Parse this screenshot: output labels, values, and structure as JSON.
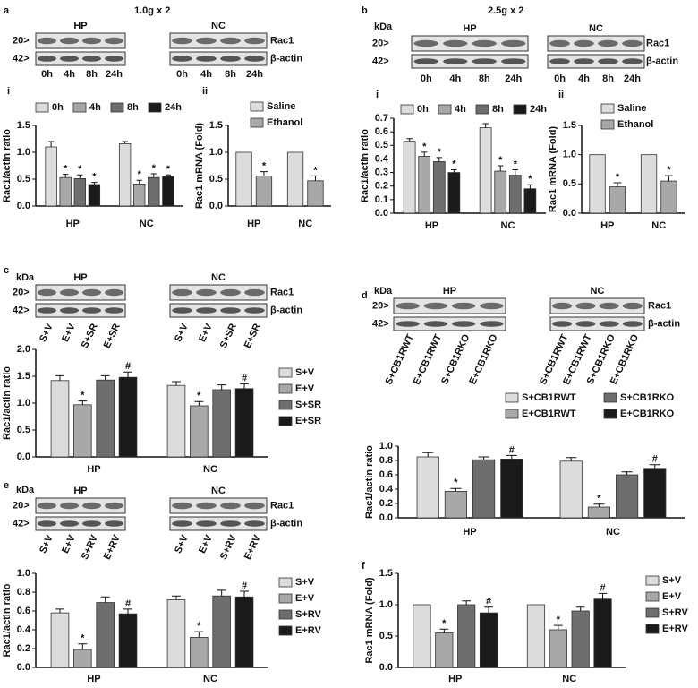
{
  "panel_letters": [
    "a",
    "b",
    "c",
    "d",
    "e",
    "f"
  ],
  "headers": [
    "1.0g x 2",
    "2.5g x 2"
  ],
  "blots": [
    {
      "groups": [
        "HP",
        "NC"
      ],
      "markers": [
        "20>",
        "42>"
      ],
      "proteins": [
        "Rac1",
        "β-actin"
      ],
      "lanes": [
        "0h",
        "4h",
        "8h",
        "24h"
      ]
    },
    {
      "kda": "kDa",
      "groups": [
        "HP",
        "NC"
      ],
      "markers": [
        "20>",
        "42>"
      ],
      "proteins": [
        "Rac1",
        "β-actin"
      ],
      "lanes": [
        "0h",
        "4h",
        "8h",
        "24h"
      ]
    },
    {
      "kda": "kDa",
      "groups": [
        "HP",
        "NC"
      ],
      "markers": [
        "20>",
        "42>"
      ],
      "proteins": [
        "Rac1",
        "β-actin"
      ],
      "lanes": [
        "S+V",
        "E+V",
        "S+SR",
        "E+SR"
      ]
    },
    {
      "kda": "kDa",
      "groups": [
        "HP",
        "NC"
      ],
      "markers": [
        "20>",
        "42>"
      ],
      "proteins": [
        "Rac1",
        "β-actin"
      ],
      "lanes": [
        "S+CB1RWT",
        "E+CB1RWT",
        "S+CB1RKO",
        "E+CB1RKO"
      ]
    },
    {
      "kda": "kDa",
      "groups": [
        "HP",
        "NC"
      ],
      "markers": [
        "20>",
        "42>"
      ],
      "proteins": [
        "Rac1",
        "β-actin"
      ],
      "lanes": [
        "S+V",
        "E+V",
        "S+RV",
        "E+RV"
      ]
    }
  ],
  "chart_data": [
    {
      "type": "bar",
      "label": "i",
      "y_label": "Rac1/actin ratio",
      "legend": "top",
      "categories": [
        "HP",
        "NC"
      ],
      "ylim": [
        0,
        1.5
      ],
      "yticks": [
        {
          "value": 0,
          "label": "0.0"
        },
        {
          "value": 0.5,
          "label": "0.5"
        },
        {
          "value": 1,
          "label": "1.0"
        },
        {
          "value": 1.5,
          "label": "1.5"
        }
      ],
      "series": [
        {
          "name": "0h",
          "color": "#dcdcdc",
          "values": [
            1.1,
            1.16
          ],
          "errors": [
            0.1,
            0.04
          ]
        },
        {
          "name": "4h",
          "color": "#a8a8a8",
          "values": [
            0.53,
            0.41
          ],
          "errors": [
            0.06,
            0.07
          ],
          "sig": [
            "*",
            "*"
          ]
        },
        {
          "name": "8h",
          "color": "#6e6e6e",
          "values": [
            0.51,
            0.53
          ],
          "errors": [
            0.07,
            0.07
          ],
          "sig": [
            "*",
            "*"
          ]
        },
        {
          "name": "24h",
          "color": "#1a1a1a",
          "values": [
            0.4,
            0.55
          ],
          "errors": [
            0.04,
            0.03
          ],
          "sig": [
            "*",
            "*"
          ]
        }
      ]
    },
    {
      "type": "bar",
      "label": "ii",
      "y_label": "Rac1 mRNA (Fold)",
      "legend": "upper right",
      "categories": [
        "HP",
        "NC"
      ],
      "ylim": [
        0,
        1.5
      ],
      "yticks": [
        {
          "value": 0,
          "label": "0.0"
        },
        {
          "value": 0.5,
          "label": "0.5"
        },
        {
          "value": 1,
          "label": "1.0"
        },
        {
          "value": 1.5,
          "label": "1.5"
        }
      ],
      "series": [
        {
          "name": "Saline",
          "color": "#dcdcdc",
          "values": [
            1,
            1
          ]
        },
        {
          "name": "Ethanol",
          "color": "#a8a8a8",
          "values": [
            0.56,
            0.47
          ],
          "errors": [
            0.08,
            0.09
          ],
          "sig": [
            "*",
            "*"
          ]
        }
      ]
    },
    {
      "type": "bar",
      "label": "i",
      "y_label": "Rac1/actin ratio",
      "legend": "top",
      "categories": [
        "HP",
        "NC"
      ],
      "ylim": [
        0,
        0.7
      ],
      "yticks": [
        {
          "value": 0,
          "label": "0.0"
        },
        0.1,
        0.2,
        0.3,
        0.4,
        0.5,
        0.6,
        0.7
      ],
      "series": [
        {
          "name": "0h",
          "color": "#dcdcdc",
          "values": [
            0.53,
            0.63
          ],
          "errors": [
            0.02,
            0.03
          ]
        },
        {
          "name": "4h",
          "color": "#a8a8a8",
          "values": [
            0.42,
            0.31
          ],
          "errors": [
            0.03,
            0.04
          ],
          "sig": [
            "*",
            "*"
          ]
        },
        {
          "name": "8h",
          "color": "#6e6e6e",
          "values": [
            0.38,
            0.28
          ],
          "errors": [
            0.03,
            0.04
          ],
          "sig": [
            "*",
            "*"
          ]
        },
        {
          "name": "24h",
          "color": "#1a1a1a",
          "values": [
            0.3,
            0.18
          ],
          "errors": [
            0.02,
            0.03
          ],
          "sig": [
            "*",
            "*"
          ]
        }
      ]
    },
    {
      "type": "bar",
      "label": "ii",
      "y_label": "Rac1 mRNA (Fold)",
      "legend": "upper right",
      "categories": [
        "HP",
        "NC"
      ],
      "ylim": [
        0,
        1.5
      ],
      "yticks": [
        {
          "value": 0,
          "label": "0.0"
        },
        {
          "value": 0.5,
          "label": "0.5"
        },
        {
          "value": 1,
          "label": "1.0"
        },
        {
          "value": 1.5,
          "label": "1.5"
        }
      ],
      "series": [
        {
          "name": "Saline",
          "color": "#dcdcdc",
          "values": [
            1,
            1
          ]
        },
        {
          "name": "Ethanol",
          "color": "#a8a8a8",
          "values": [
            0.45,
            0.55
          ],
          "errors": [
            0.07,
            0.09
          ],
          "sig": [
            "*",
            "*"
          ]
        }
      ]
    },
    {
      "type": "bar",
      "y_label": "Rac1/actin ratio",
      "legend": "right",
      "categories": [
        "HP",
        "NC"
      ],
      "ylim": [
        0,
        2
      ],
      "yticks": [
        {
          "value": 0,
          "label": "0.0"
        },
        {
          "value": 0.5,
          "label": "0.5"
        },
        {
          "value": 1,
          "label": "1.0"
        },
        {
          "value": 1.5,
          "label": "1.5"
        },
        {
          "value": 2,
          "label": "2.0"
        }
      ],
      "series": [
        {
          "name": "S+V",
          "color": "#dcdcdc",
          "values": [
            1.42,
            1.33
          ],
          "errors": [
            0.09,
            0.07
          ]
        },
        {
          "name": "E+V",
          "color": "#a8a8a8",
          "values": [
            0.97,
            0.95
          ],
          "errors": [
            0.07,
            0.08
          ],
          "sig": [
            "*",
            "*"
          ]
        },
        {
          "name": "S+SR",
          "color": "#6e6e6e",
          "values": [
            1.43,
            1.25
          ],
          "errors": [
            0.08,
            0.09
          ]
        },
        {
          "name": "E+SR",
          "color": "#1a1a1a",
          "values": [
            1.48,
            1.27
          ],
          "errors": [
            0.1,
            0.09
          ],
          "sig": [
            "#",
            "#"
          ]
        }
      ]
    },
    {
      "type": "bar",
      "y_label": "Rac1/actin ratio",
      "legend": "top",
      "categories": [
        "HP",
        "NC"
      ],
      "ylim": [
        0,
        1
      ],
      "yticks": [
        {
          "value": 0,
          "label": "0.0"
        },
        0.2,
        0.4,
        0.6,
        0.8,
        {
          "value": 1,
          "label": "1.0"
        }
      ],
      "series": [
        {
          "name": "S+CB1RWT",
          "color": "#dcdcdc",
          "values": [
            0.85,
            0.79
          ],
          "errors": [
            0.06,
            0.05
          ]
        },
        {
          "name": "E+CB1RWT",
          "color": "#a8a8a8",
          "values": [
            0.37,
            0.15
          ],
          "errors": [
            0.04,
            0.04
          ],
          "sig": [
            "*",
            "*"
          ]
        },
        {
          "name": "S+CB1RKO",
          "color": "#6e6e6e",
          "values": [
            0.81,
            0.6
          ],
          "errors": [
            0.04,
            0.04
          ]
        },
        {
          "name": "E+CB1RKO",
          "color": "#1a1a1a",
          "values": [
            0.82,
            0.69
          ],
          "errors": [
            0.05,
            0.05
          ],
          "sig": [
            "#",
            "#"
          ]
        }
      ]
    },
    {
      "type": "bar",
      "y_label": "Rac1/actin ratio",
      "legend": "right",
      "categories": [
        "HP",
        "NC"
      ],
      "ylim": [
        0,
        1
      ],
      "yticks": [
        {
          "value": 0,
          "label": "0.0"
        },
        0.2,
        0.4,
        0.6,
        0.8,
        {
          "value": 1,
          "label": "1.0"
        }
      ],
      "series": [
        {
          "name": "S+V",
          "color": "#dcdcdc",
          "values": [
            0.58,
            0.72
          ],
          "errors": [
            0.04,
            0.04
          ]
        },
        {
          "name": "E+V",
          "color": "#a8a8a8",
          "values": [
            0.19,
            0.32
          ],
          "errors": [
            0.06,
            0.06
          ],
          "sig": [
            "*",
            "*"
          ]
        },
        {
          "name": "S+RV",
          "color": "#6e6e6e",
          "values": [
            0.69,
            0.76
          ],
          "errors": [
            0.06,
            0.06
          ]
        },
        {
          "name": "E+RV",
          "color": "#1a1a1a",
          "values": [
            0.57,
            0.75
          ],
          "errors": [
            0.05,
            0.06
          ],
          "sig": [
            "#",
            "#"
          ]
        }
      ]
    },
    {
      "type": "bar",
      "y_label": "Rac1 mRNA (Fold)",
      "legend": "right",
      "categories": [
        "HP",
        "NC"
      ],
      "ylim": [
        0,
        1.5
      ],
      "yticks": [
        {
          "value": 0,
          "label": "0.0"
        },
        {
          "value": 0.5,
          "label": "0.5"
        },
        {
          "value": 1,
          "label": "1.0"
        },
        {
          "value": 1.5,
          "label": "1.5"
        }
      ],
      "series": [
        {
          "name": "S+V",
          "color": "#dcdcdc",
          "values": [
            1,
            1
          ]
        },
        {
          "name": "E+V",
          "color": "#a8a8a8",
          "values": [
            0.55,
            0.6
          ],
          "errors": [
            0.06,
            0.07
          ],
          "sig": [
            "*",
            "*"
          ]
        },
        {
          "name": "S+RV",
          "color": "#6e6e6e",
          "values": [
            1.0,
            0.9
          ],
          "errors": [
            0.06,
            0.06
          ]
        },
        {
          "name": "E+RV",
          "color": "#1a1a1a",
          "values": [
            0.87,
            1.09
          ],
          "errors": [
            0.09,
            0.09
          ],
          "sig": [
            "#",
            "#"
          ]
        }
      ]
    }
  ]
}
